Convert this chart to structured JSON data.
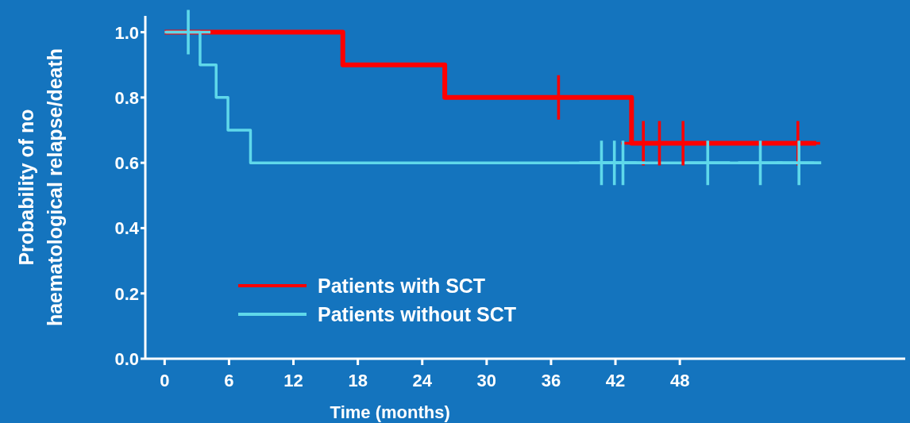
{
  "chart_data": {
    "type": "step",
    "xlabel": "Time (months)",
    "ylabel": "Probability of no\nhaematological relapse/death",
    "xlim": [
      -1.8,
      69
    ],
    "xticks": [
      0,
      6,
      12,
      18,
      24,
      30,
      36,
      42,
      48
    ],
    "ylim": [
      0,
      1.05
    ],
    "yticks": [
      {
        "value": 0,
        "label": "0.0"
      },
      {
        "value": 0.2,
        "label": "0.2"
      },
      {
        "value": 0.4,
        "label": "0.4"
      },
      {
        "value": 0.6,
        "label": "0.6"
      },
      {
        "value": 0.8,
        "label": "0.8"
      },
      {
        "value": 1,
        "label": "1.0"
      }
    ],
    "grid": false,
    "legend": "bottom left",
    "series": [
      {
        "name": "Patients with SCT",
        "color": "#ff0000",
        "x": [
          0,
          16.6,
          26.1,
          43.5,
          60.7
        ],
        "values": [
          1,
          0.9,
          0.8,
          0.66,
          0.66
        ]
      },
      {
        "name": "Patients without SCT",
        "color": "#5fd8ea",
        "x": [
          0,
          3.3,
          4.8,
          5.9,
          8.0,
          60.5
        ],
        "values": [
          1,
          0.9,
          0.8,
          0.7,
          0.6,
          0.6
        ]
      },
      {
        "color": "#ff0000",
        "type": "scatter",
        "marker": "cross",
        "x": [
          36.7,
          44.6,
          46.1,
          48.3,
          59
        ],
        "values": [
          0.8,
          0.66,
          0.66,
          0.66,
          0.66
        ]
      },
      {
        "color": "#5fd8ea",
        "type": "scatter",
        "marker": "cross",
        "x": [
          2.2,
          40.7,
          41.9,
          42.7,
          50.6,
          55.5,
          59.1
        ],
        "values": [
          1,
          0.6,
          0.6,
          0.6,
          0.6,
          0.6,
          0.6
        ]
      }
    ]
  }
}
